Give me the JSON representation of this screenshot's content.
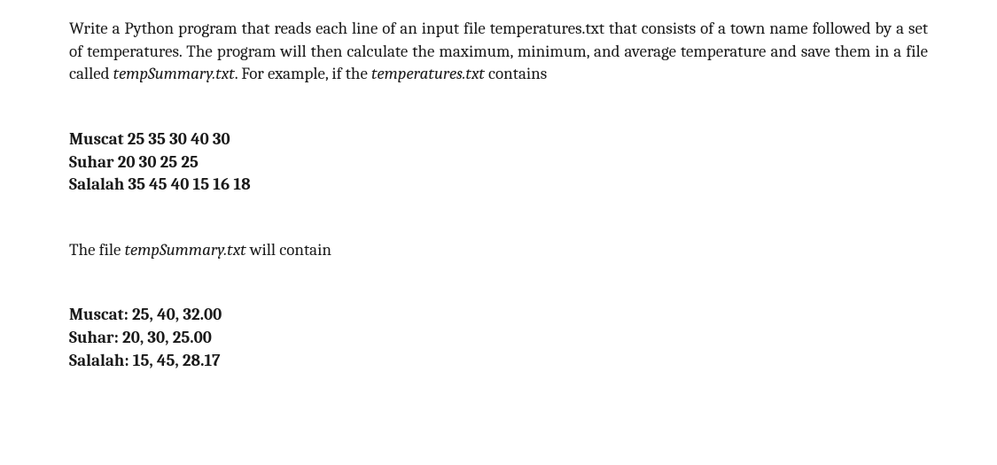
{
  "intro": {
    "seg1": "Write a Python program that reads each line of an input file temperatures.txt that consists of a town name followed by a set of temperatures. The program will then calculate the maximum, minimum, and average temperature and save them in a file called ",
    "seg2_italic": "tempSummary.txt",
    "seg3": ". For example, if the ",
    "seg4_italic": "temperatures.txt",
    "seg5": " contains"
  },
  "input_data": {
    "line1": "Muscat 25 35 30 40 30",
    "line2": "Suhar 20 30 25 25",
    "line3": "Salalah 35 45 40 15 16 18"
  },
  "middle": {
    "seg1": "The file ",
    "seg2_italic": "tempSummary.txt",
    "seg3": " will contain"
  },
  "output_data": {
    "line1": "Muscat: 25, 40, 32.00",
    "line2": "Suhar: 20, 30, 25.00",
    "line3": "Salalah: 15, 45, 28.17"
  },
  "styling": {
    "font_family": "Cambria, Georgia, serif",
    "font_size_pt": 14,
    "text_color": "#1a1a1a",
    "background_color": "#ffffff",
    "intro_align": "justify"
  }
}
